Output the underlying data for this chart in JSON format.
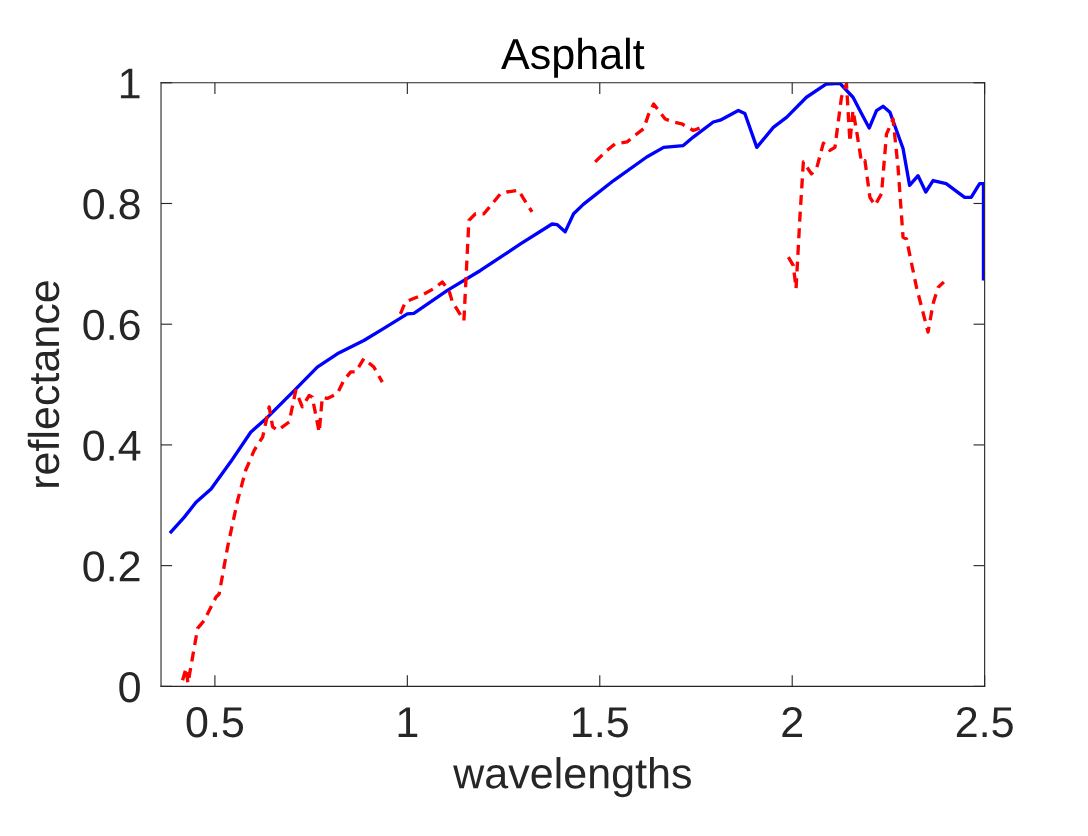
{
  "chart_data": {
    "type": "line",
    "title": "Asphalt",
    "xlabel": "wavelengths",
    "ylabel": "reflectance",
    "xlim": [
      0.36,
      2.5
    ],
    "ylim": [
      0,
      1
    ],
    "xticks": [
      0.5,
      1,
      1.5,
      2,
      2.5
    ],
    "yticks": [
      0,
      0.2,
      0.4,
      0.6,
      0.8,
      1
    ],
    "grid": false,
    "series": [
      {
        "color": "#0000ff",
        "line_style": "solid",
        "x": [
          0.386,
          0.42,
          0.451,
          0.49,
          0.541,
          0.593,
          0.637,
          0.706,
          0.766,
          0.818,
          0.887,
          0.939,
          1.0,
          1.017,
          1.104,
          1.19,
          1.294,
          1.376,
          1.389,
          1.41,
          1.432,
          1.458,
          1.536,
          1.622,
          1.666,
          1.717,
          1.743,
          1.795,
          1.813,
          1.86,
          1.877,
          1.908,
          1.951,
          1.986,
          2.037,
          2.089,
          2.124,
          2.158,
          2.18,
          2.2,
          2.219,
          2.236,
          2.254,
          2.288,
          2.305,
          2.327,
          2.347,
          2.366,
          2.4,
          2.448,
          2.465,
          2.487,
          2.497,
          2.497
        ],
        "values": [
          0.256,
          0.28,
          0.305,
          0.327,
          0.372,
          0.421,
          0.446,
          0.49,
          0.529,
          0.551,
          0.573,
          0.593,
          0.617,
          0.618,
          0.656,
          0.689,
          0.733,
          0.766,
          0.765,
          0.753,
          0.783,
          0.799,
          0.838,
          0.877,
          0.893,
          0.896,
          0.91,
          0.935,
          0.938,
          0.954,
          0.949,
          0.893,
          0.926,
          0.943,
          0.976,
          0.998,
          0.999,
          0.976,
          0.949,
          0.925,
          0.954,
          0.961,
          0.951,
          0.891,
          0.83,
          0.846,
          0.819,
          0.838,
          0.833,
          0.81,
          0.81,
          0.833,
          0.833,
          0.675
        ]
      },
      {
        "color": "#ff0000",
        "line_style": "dashed",
        "x": [
          0.416,
          0.425,
          0.43,
          0.455,
          0.472,
          0.503,
          0.511,
          0.533,
          0.559,
          0.58,
          0.602,
          0.624,
          0.641,
          0.65,
          0.663,
          0.693,
          0.71,
          0.727,
          0.745,
          0.753,
          0.771,
          0.779,
          0.792,
          0.818,
          0.835,
          0.853,
          0.866,
          0.887,
          0.913,
          0.935,
          0.96,
          0.982,
          0.995,
          1.026,
          1.043,
          1.069,
          1.091,
          1.108,
          1.117,
          1.147,
          1.156,
          1.16,
          1.177,
          1.199,
          1.242,
          1.259,
          1.289,
          1.302,
          1.324,
          1.4,
          1.488,
          1.519,
          1.54,
          1.571,
          1.596,
          1.614,
          1.627,
          1.64,
          1.67,
          1.691,
          1.713,
          1.743,
          1.769,
          1.88,
          1.99,
          2.003,
          2.01,
          2.02,
          2.029,
          2.05,
          2.063,
          2.081,
          2.098,
          2.111,
          2.128,
          2.141,
          2.15,
          2.158,
          2.167,
          2.18,
          2.189,
          2.202,
          2.215,
          2.232,
          2.245,
          2.262,
          2.275,
          2.288,
          2.297,
          2.323,
          2.353,
          2.366,
          2.379,
          2.394
        ],
        "values": [
          0.01,
          0.03,
          0.005,
          0.096,
          0.109,
          0.148,
          0.153,
          0.231,
          0.308,
          0.358,
          0.391,
          0.413,
          0.463,
          0.43,
          0.424,
          0.438,
          0.49,
          0.463,
          0.482,
          0.479,
          0.421,
          0.479,
          0.477,
          0.485,
          0.507,
          0.521,
          0.521,
          0.543,
          0.529,
          0.504,
          null,
          0.617,
          0.637,
          0.645,
          0.65,
          0.659,
          0.67,
          0.656,
          0.637,
          0.606,
          0.722,
          0.772,
          0.783,
          0.783,
          0.816,
          0.819,
          0.822,
          0.808,
          0.786,
          null,
          0.869,
          0.888,
          0.899,
          0.902,
          0.915,
          0.924,
          0.948,
          0.965,
          0.94,
          0.935,
          0.932,
          0.921,
          0.927,
          null,
          0.711,
          0.697,
          0.659,
          0.777,
          0.869,
          0.849,
          0.857,
          0.9,
          0.888,
          0.893,
          0.976,
          0.998,
          0.902,
          0.954,
          0.921,
          0.869,
          0.871,
          0.81,
          0.797,
          0.816,
          0.915,
          0.94,
          0.86,
          0.744,
          0.741,
          0.661,
          0.587,
          0.634,
          0.661,
          0.67
        ]
      }
    ]
  }
}
